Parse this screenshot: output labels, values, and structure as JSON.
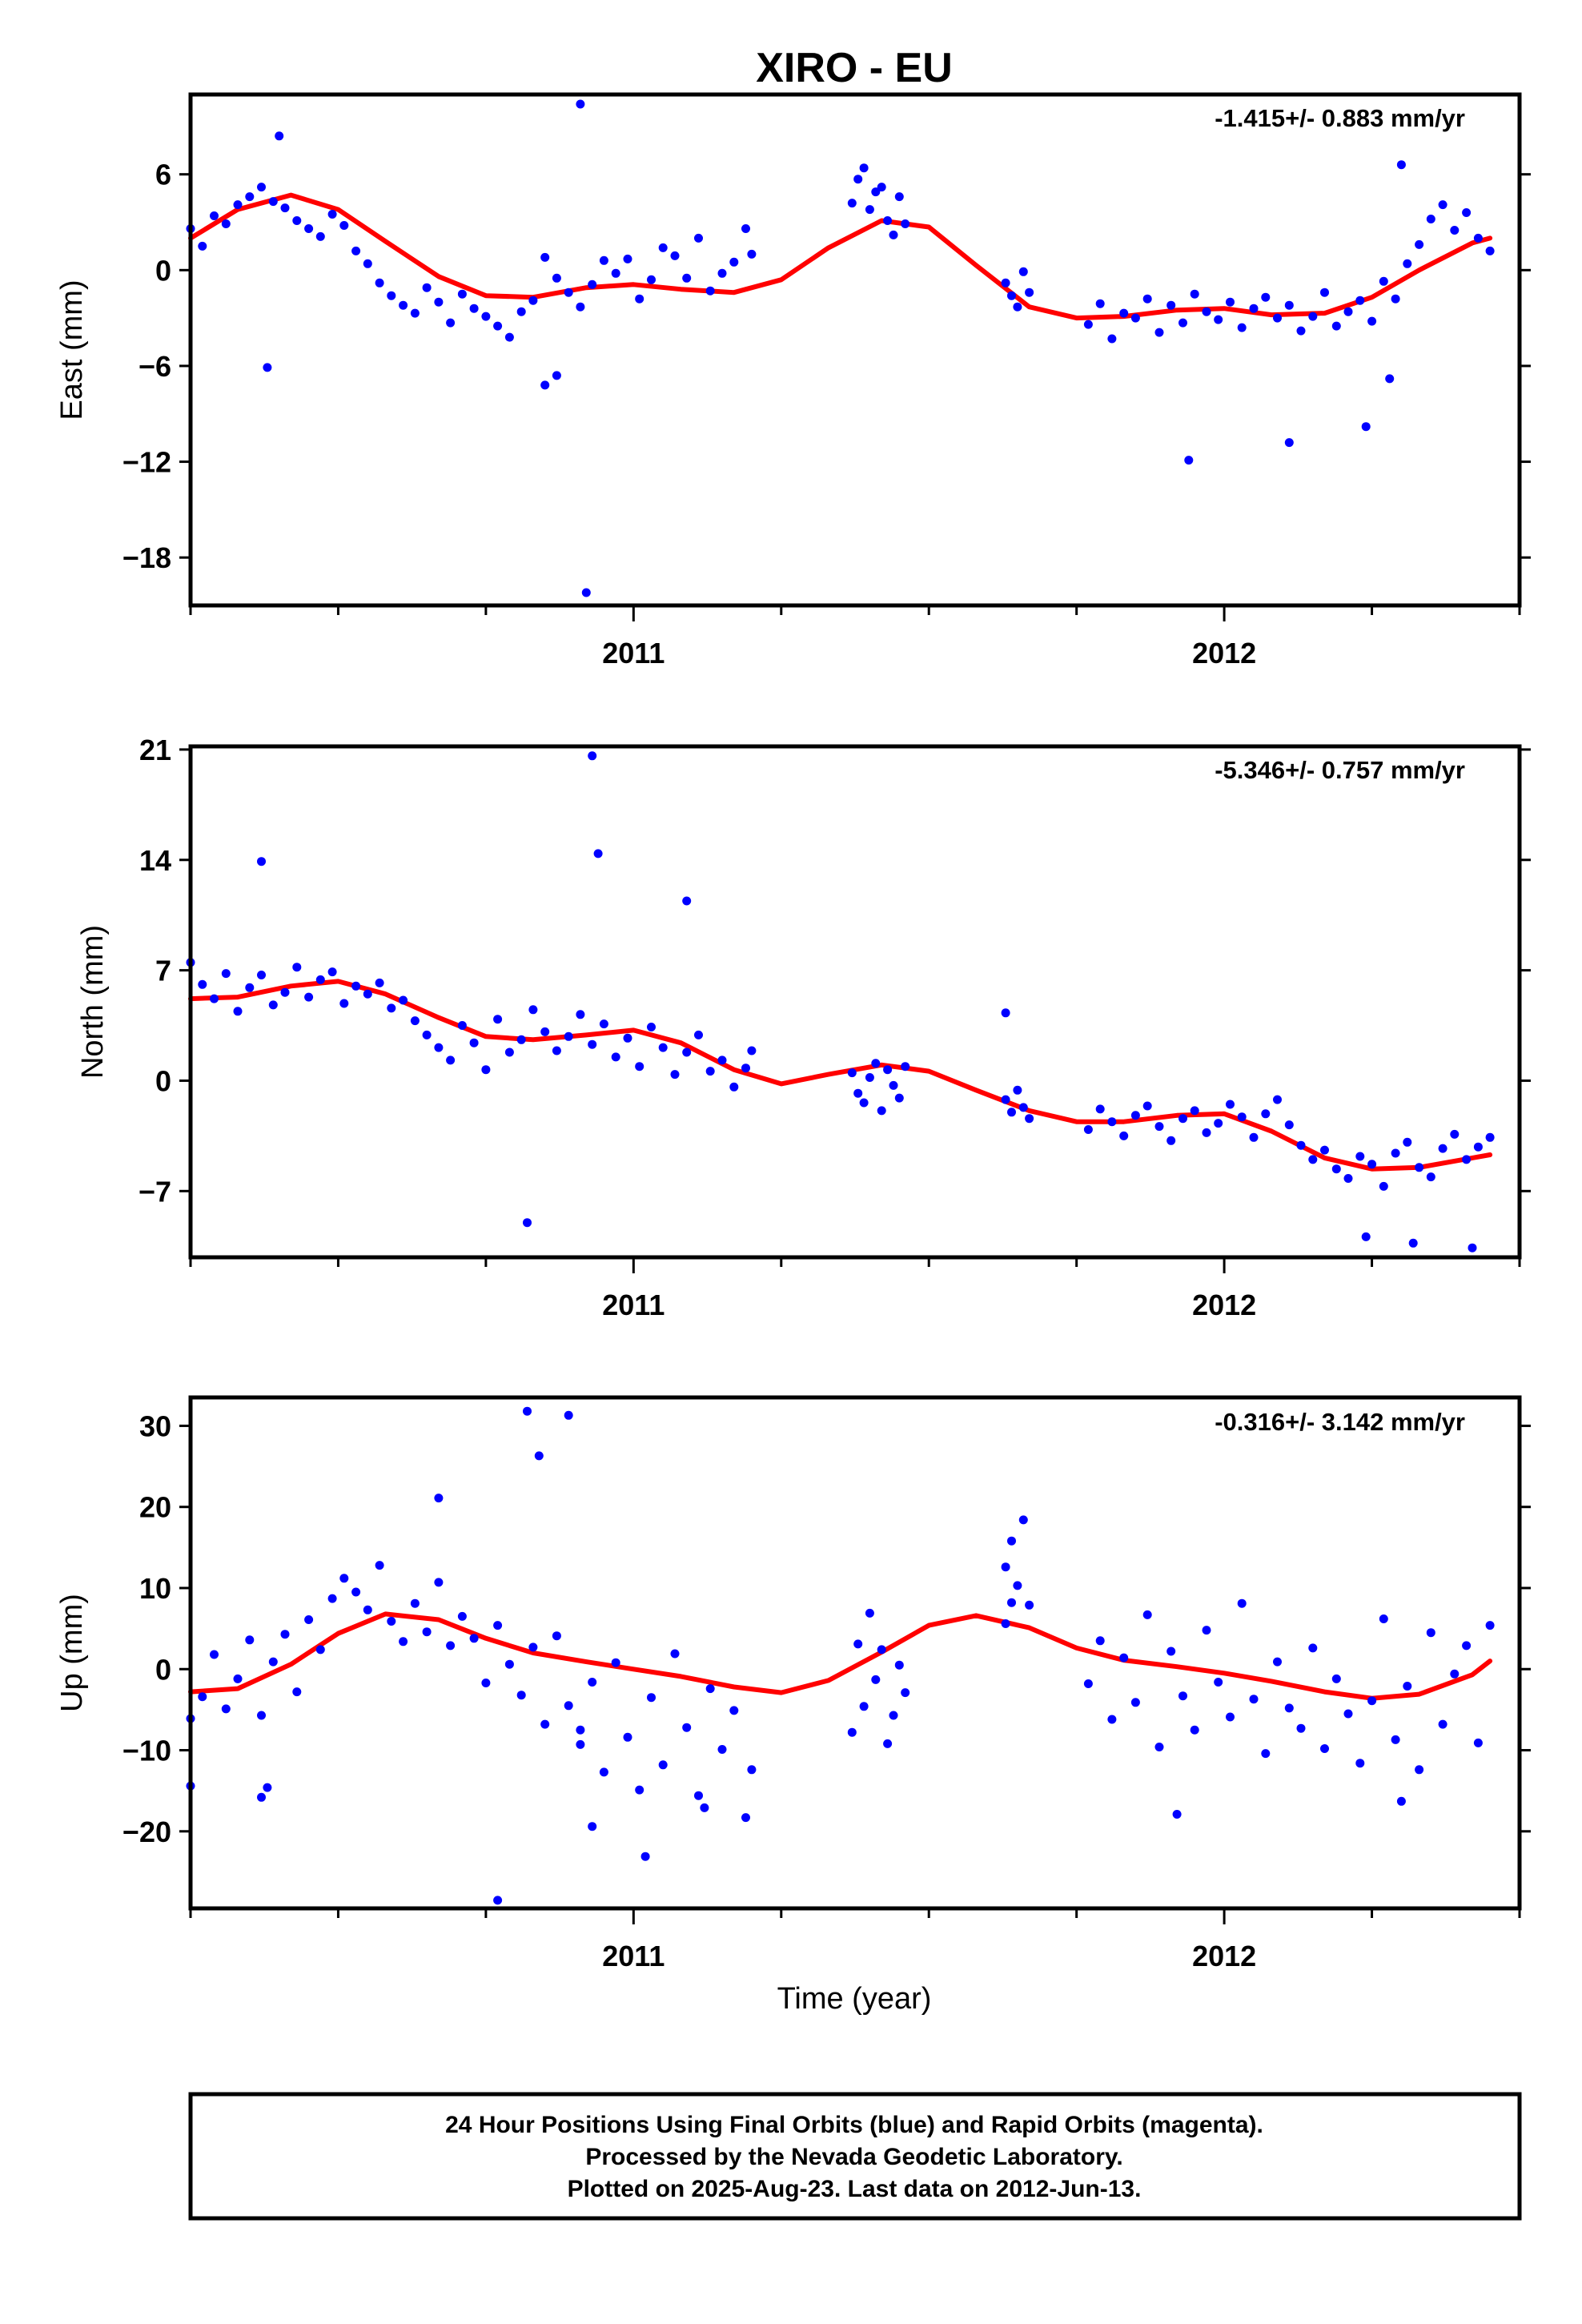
{
  "title": "XIRO - EU",
  "footer": {
    "lines": [
      "24 Hour Positions Using Final Orbits (blue) and Rapid Orbits (magenta).",
      "Processed by the Nevada Geodetic Laboratory.",
      "Plotted on 2025-Aug-23. Last data on 2012-Jun-13."
    ]
  },
  "colors": {
    "points": "#0000ff",
    "fit": "#ff0000",
    "frame": "#000000"
  },
  "chart_data": [
    {
      "type": "scatter",
      "component": "East",
      "ylabel": "East (mm)",
      "xlabel": "",
      "rate_label": "-1.415+/- 0.883 mm/yr",
      "xlim": [
        2010.25,
        2012.5
      ],
      "ylim": [
        -21,
        11
      ],
      "yticks": [
        -18,
        -12,
        -6,
        0,
        6
      ],
      "ytick_labels": [
        "−18",
        "−12",
        "−6",
        "0",
        "6"
      ],
      "xticks": [
        2011,
        2012
      ],
      "xtick_labels": [
        "2011",
        "2012"
      ],
      "xminor": [
        2010.25,
        2010.5,
        2010.75,
        2011.25,
        2011.5,
        2011.75,
        2012.25,
        2012.5
      ],
      "fit": {
        "x": [
          2010.25,
          2010.33,
          2010.42,
          2010.5,
          2010.58,
          2010.67,
          2010.75,
          2010.83,
          2010.92,
          2011.0,
          2011.08,
          2011.17,
          2011.25,
          2011.33,
          2011.42,
          2011.5,
          2011.58,
          2011.67,
          2011.75,
          2011.83,
          2011.92,
          2012.0,
          2012.08,
          2012.17,
          2012.25,
          2012.33,
          2012.42,
          2012.45
        ],
        "y": [
          2.0,
          3.8,
          4.7,
          3.8,
          1.8,
          -0.4,
          -1.6,
          -1.7,
          -1.1,
          -0.9,
          -1.2,
          -1.4,
          -0.6,
          1.4,
          3.1,
          2.7,
          0.3,
          -2.3,
          -3.0,
          -2.9,
          -2.5,
          -2.4,
          -2.8,
          -2.7,
          -1.7,
          0.0,
          1.7,
          2.0
        ]
      },
      "points": {
        "x": [
          2010.25,
          2010.27,
          2010.29,
          2010.31,
          2010.33,
          2010.35,
          2010.37,
          2010.39,
          2010.41,
          2010.43,
          2010.45,
          2010.47,
          2010.49,
          2010.51,
          2010.53,
          2010.55,
          2010.57,
          2010.59,
          2010.61,
          2010.63,
          2010.65,
          2010.67,
          2010.69,
          2010.71,
          2010.73,
          2010.75,
          2010.77,
          2010.79,
          2010.81,
          2010.83,
          2010.85,
          2010.87,
          2010.89,
          2010.91,
          2010.93,
          2010.95,
          2010.97,
          2010.99,
          2011.01,
          2011.03,
          2011.05,
          2011.07,
          2011.09,
          2011.11,
          2011.13,
          2011.15,
          2011.17,
          2011.19,
          2011.2,
          2011.37,
          2011.38,
          2011.39,
          2011.4,
          2011.41,
          2011.42,
          2011.43,
          2011.44,
          2011.45,
          2011.46,
          2011.63,
          2011.64,
          2011.65,
          2011.66,
          2011.67,
          2011.77,
          2011.79,
          2011.81,
          2011.83,
          2011.85,
          2011.87,
          2011.89,
          2011.91,
          2011.93,
          2011.95,
          2011.97,
          2011.99,
          2012.01,
          2012.03,
          2012.05,
          2012.07,
          2012.09,
          2012.11,
          2012.13,
          2012.15,
          2012.17,
          2012.19,
          2012.21,
          2012.23,
          2012.25,
          2012.27,
          2012.29,
          2012.31,
          2012.33,
          2012.35,
          2012.37,
          2012.39,
          2012.41,
          2012.43,
          2012.45,
          2010.38,
          2010.4,
          2010.85,
          2010.87,
          2010.91,
          2010.92,
          2011.94,
          2012.11,
          2012.24,
          2012.28,
          2012.3
        ],
        "y": [
          2.6,
          1.5,
          3.4,
          2.9,
          4.1,
          4.6,
          5.2,
          4.3,
          3.9,
          3.1,
          2.6,
          2.1,
          3.5,
          2.8,
          1.2,
          0.4,
          -0.8,
          -1.6,
          -2.2,
          -2.7,
          -1.1,
          -2.0,
          -3.3,
          -1.5,
          -2.4,
          -2.9,
          -3.5,
          -4.2,
          -2.6,
          -1.9,
          0.8,
          -0.5,
          -1.4,
          -2.3,
          -0.9,
          0.6,
          -0.2,
          0.7,
          -1.8,
          -0.6,
          1.4,
          0.9,
          -0.5,
          2.0,
          -1.3,
          -0.2,
          0.5,
          2.6,
          1.0,
          4.2,
          5.7,
          6.4,
          3.8,
          4.9,
          5.2,
          3.1,
          2.2,
          4.6,
          2.9,
          -0.8,
          -1.6,
          -2.3,
          -0.1,
          -1.4,
          -3.4,
          -2.1,
          -4.3,
          -2.7,
          -3.0,
          -1.8,
          -3.9,
          -2.2,
          -3.3,
          -1.5,
          -2.6,
          -3.1,
          -2.0,
          -3.6,
          -2.4,
          -1.7,
          -3.0,
          -2.2,
          -3.8,
          -2.9,
          -1.4,
          -3.5,
          -2.6,
          -1.9,
          -3.2,
          -0.7,
          -1.8,
          0.4,
          1.6,
          3.2,
          4.1,
          2.5,
          3.6,
          2.0,
          1.2,
          -6.1,
          8.4,
          -7.2,
          -6.6,
          10.4,
          -20.2,
          -11.9,
          -10.8,
          -9.8,
          -6.8,
          6.6
        ]
      }
    },
    {
      "type": "scatter",
      "component": "North",
      "ylabel": "North (mm)",
      "xlabel": "",
      "rate_label": "-5.346+/- 0.757 mm/yr",
      "xlim": [
        2010.25,
        2012.5
      ],
      "ylim": [
        -11.2,
        21.2
      ],
      "yticks": [
        -7,
        0,
        7,
        14,
        21
      ],
      "ytick_labels": [
        "−7",
        "0",
        "7",
        "14",
        "21"
      ],
      "xticks": [
        2011,
        2012
      ],
      "xtick_labels": [
        "2011",
        "2012"
      ],
      "xminor": [
        2010.25,
        2010.5,
        2010.75,
        2011.25,
        2011.5,
        2011.75,
        2012.25,
        2012.5
      ],
      "fit": {
        "x": [
          2010.25,
          2010.33,
          2010.42,
          2010.5,
          2010.58,
          2010.67,
          2010.75,
          2010.83,
          2010.92,
          2011.0,
          2011.08,
          2011.17,
          2011.25,
          2011.33,
          2011.42,
          2011.5,
          2011.58,
          2011.67,
          2011.75,
          2011.83,
          2011.92,
          2012.0,
          2012.08,
          2012.17,
          2012.25,
          2012.33,
          2012.42,
          2012.45
        ],
        "y": [
          5.2,
          5.3,
          6.0,
          6.3,
          5.5,
          4.0,
          2.8,
          2.6,
          2.9,
          3.2,
          2.4,
          0.7,
          -0.2,
          0.4,
          1.0,
          0.6,
          -0.6,
          -1.9,
          -2.6,
          -2.6,
          -2.2,
          -2.1,
          -3.2,
          -4.9,
          -5.6,
          -5.5,
          -4.9,
          -4.7
        ]
      },
      "points": {
        "x": [
          2010.25,
          2010.27,
          2010.29,
          2010.31,
          2010.33,
          2010.35,
          2010.37,
          2010.39,
          2010.41,
          2010.43,
          2010.45,
          2010.47,
          2010.49,
          2010.51,
          2010.53,
          2010.55,
          2010.57,
          2010.59,
          2010.61,
          2010.63,
          2010.65,
          2010.67,
          2010.69,
          2010.71,
          2010.73,
          2010.75,
          2010.77,
          2010.79,
          2010.81,
          2010.83,
          2010.85,
          2010.87,
          2010.89,
          2010.91,
          2010.93,
          2010.95,
          2010.97,
          2010.99,
          2011.01,
          2011.03,
          2011.05,
          2011.07,
          2011.09,
          2011.11,
          2011.13,
          2011.15,
          2011.17,
          2011.19,
          2011.2,
          2011.37,
          2011.38,
          2011.39,
          2011.4,
          2011.41,
          2011.42,
          2011.43,
          2011.44,
          2011.45,
          2011.46,
          2011.63,
          2011.64,
          2011.65,
          2011.66,
          2011.67,
          2011.77,
          2011.79,
          2011.81,
          2011.83,
          2011.85,
          2011.87,
          2011.89,
          2011.91,
          2011.93,
          2011.95,
          2011.97,
          2011.99,
          2012.01,
          2012.03,
          2012.05,
          2012.07,
          2012.09,
          2012.11,
          2012.13,
          2012.15,
          2012.17,
          2012.19,
          2012.21,
          2012.23,
          2012.25,
          2012.27,
          2012.29,
          2012.31,
          2012.33,
          2012.35,
          2012.37,
          2012.39,
          2012.41,
          2012.43,
          2012.45,
          2010.37,
          2010.82,
          2010.93,
          2010.94,
          2011.09,
          2011.63,
          2012.24,
          2012.32,
          2012.42
        ],
        "y": [
          7.5,
          6.1,
          5.2,
          6.8,
          4.4,
          5.9,
          6.7,
          4.8,
          5.6,
          7.2,
          5.3,
          6.4,
          6.9,
          4.9,
          6.0,
          5.5,
          6.2,
          4.6,
          5.1,
          3.8,
          2.9,
          2.1,
          1.3,
          3.5,
          2.4,
          0.7,
          3.9,
          1.8,
          2.6,
          4.5,
          3.1,
          1.9,
          2.8,
          4.2,
          2.3,
          3.6,
          1.5,
          2.7,
          0.9,
          3.4,
          2.1,
          0.4,
          1.8,
          2.9,
          0.6,
          1.3,
          -0.4,
          0.8,
          1.9,
          0.5,
          -0.8,
          -1.4,
          0.2,
          1.1,
          -1.9,
          0.7,
          -0.3,
          -1.1,
          0.9,
          -1.2,
          -2.0,
          -0.6,
          -1.7,
          -2.4,
          -3.1,
          -1.8,
          -2.6,
          -3.5,
          -2.2,
          -1.6,
          -2.9,
          -3.8,
          -2.4,
          -1.9,
          -3.3,
          -2.7,
          -1.5,
          -2.3,
          -3.6,
          -2.1,
          -1.2,
          -2.8,
          -4.1,
          -5.0,
          -4.4,
          -5.6,
          -6.2,
          -4.8,
          -5.3,
          -6.7,
          -4.6,
          -3.9,
          -5.5,
          -6.1,
          -4.3,
          -3.4,
          -5.0,
          -4.2,
          -3.6,
          13.9,
          -9.0,
          20.6,
          14.4,
          11.4,
          4.3,
          -9.9,
          -10.3,
          -10.6
        ]
      }
    },
    {
      "type": "scatter",
      "component": "Up",
      "ylabel": "Up (mm)",
      "xlabel": "Time (year)",
      "rate_label": "-0.316+/- 3.142 mm/yr",
      "xlim": [
        2010.25,
        2012.5
      ],
      "ylim": [
        -29.5,
        33.5
      ],
      "yticks": [
        -20,
        -10,
        0,
        10,
        20,
        30
      ],
      "ytick_labels": [
        "−20",
        "−10",
        "0",
        "10",
        "20",
        "30"
      ],
      "xticks": [
        2011,
        2012
      ],
      "xtick_labels": [
        "2011",
        "2012"
      ],
      "xminor": [
        2010.25,
        2010.5,
        2010.75,
        2011.25,
        2011.5,
        2011.75,
        2012.25,
        2012.5
      ],
      "fit": {
        "x": [
          2010.25,
          2010.33,
          2010.42,
          2010.5,
          2010.58,
          2010.67,
          2010.75,
          2010.83,
          2010.92,
          2011.0,
          2011.08,
          2011.17,
          2011.25,
          2011.33,
          2011.42,
          2011.5,
          2011.58,
          2011.67,
          2011.75,
          2011.83,
          2011.92,
          2012.0,
          2012.08,
          2012.17,
          2012.25,
          2012.33,
          2012.42,
          2012.45
        ],
        "y": [
          -2.8,
          -2.4,
          0.6,
          4.4,
          6.8,
          6.1,
          3.8,
          2.0,
          0.9,
          0.0,
          -0.9,
          -2.2,
          -2.9,
          -1.4,
          2.1,
          5.4,
          6.6,
          5.1,
          2.6,
          1.1,
          0.3,
          -0.5,
          -1.5,
          -2.8,
          -3.6,
          -3.1,
          -0.7,
          1.0
        ]
      },
      "points": {
        "x": [
          2010.25,
          2010.27,
          2010.29,
          2010.31,
          2010.33,
          2010.35,
          2010.37,
          2010.39,
          2010.41,
          2010.43,
          2010.45,
          2010.47,
          2010.49,
          2010.51,
          2010.53,
          2010.55,
          2010.57,
          2010.59,
          2010.61,
          2010.63,
          2010.65,
          2010.67,
          2010.69,
          2010.71,
          2010.73,
          2010.75,
          2010.77,
          2010.79,
          2010.81,
          2010.83,
          2010.85,
          2010.87,
          2010.89,
          2010.91,
          2010.93,
          2010.95,
          2010.97,
          2010.99,
          2011.01,
          2011.03,
          2011.05,
          2011.07,
          2011.09,
          2011.11,
          2011.13,
          2011.15,
          2011.17,
          2011.19,
          2011.2,
          2011.37,
          2011.38,
          2011.39,
          2011.4,
          2011.41,
          2011.42,
          2011.43,
          2011.44,
          2011.45,
          2011.46,
          2011.63,
          2011.64,
          2011.65,
          2011.66,
          2011.67,
          2011.77,
          2011.79,
          2011.81,
          2011.83,
          2011.85,
          2011.87,
          2011.89,
          2011.91,
          2011.93,
          2011.95,
          2011.97,
          2011.99,
          2012.01,
          2012.03,
          2012.05,
          2012.07,
          2012.09,
          2012.11,
          2012.13,
          2012.15,
          2012.17,
          2012.19,
          2012.21,
          2012.23,
          2012.25,
          2012.27,
          2012.29,
          2012.31,
          2012.33,
          2012.35,
          2012.37,
          2012.39,
          2012.41,
          2012.43,
          2012.45,
          2010.25,
          2010.37,
          2010.38,
          2010.67,
          2010.77,
          2010.82,
          2010.84,
          2010.89,
          2010.91,
          2010.93,
          2011.02,
          2011.12,
          2011.63,
          2011.64,
          2011.92,
          2012.3
        ],
        "y": [
          -6.1,
          -3.4,
          1.8,
          -4.9,
          -1.2,
          3.6,
          -5.7,
          0.9,
          4.3,
          -2.8,
          6.1,
          2.4,
          8.7,
          11.2,
          9.5,
          7.3,
          12.8,
          5.9,
          3.4,
          8.1,
          4.6,
          10.7,
          2.9,
          6.5,
          3.8,
          -1.7,
          5.4,
          0.6,
          -3.2,
          2.7,
          -6.8,
          4.1,
          -4.5,
          -9.3,
          -1.6,
          -12.7,
          0.8,
          -8.4,
          -14.9,
          -3.5,
          -11.8,
          1.9,
          -7.2,
          -15.6,
          -2.4,
          -9.9,
          -5.1,
          -18.3,
          -12.4,
          -7.8,
          3.1,
          -4.6,
          6.9,
          -1.3,
          2.4,
          -9.2,
          -5.7,
          0.5,
          -2.9,
          12.6,
          15.8,
          10.3,
          18.4,
          7.9,
          -1.8,
          3.5,
          -6.2,
          1.4,
          -4.1,
          6.7,
          -9.6,
          2.2,
          -3.3,
          -7.5,
          4.8,
          -1.6,
          -5.9,
          8.1,
          -3.7,
          -10.4,
          0.9,
          -4.8,
          -7.3,
          2.6,
          -9.8,
          -1.2,
          -5.5,
          -11.6,
          -3.9,
          6.2,
          -8.7,
          -2.1,
          -12.4,
          4.5,
          -6.8,
          -0.6,
          2.9,
          -9.1,
          5.4,
          -14.4,
          -15.8,
          -14.6,
          21.1,
          -28.5,
          31.8,
          26.3,
          31.3,
          -7.5,
          -19.4,
          -23.1,
          -17.1,
          5.6,
          8.2,
          -17.9,
          -16.3
        ]
      }
    }
  ]
}
